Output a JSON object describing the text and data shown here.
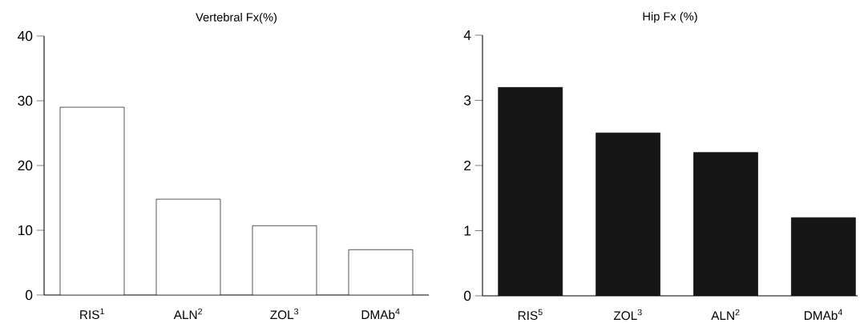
{
  "chart_data": [
    {
      "type": "bar",
      "title": "Vertebral Fx(%)",
      "categories": [
        "RIS$^{1}$",
        "ALN$^{2}$",
        "ZOL$^{3}$",
        "DMAb$^{4}$"
      ],
      "values": [
        29,
        14.8,
        10.7,
        7.0
      ],
      "color": "#ffffff",
      "ylim": [
        0,
        40
      ],
      "yticks": [
        0,
        10,
        20,
        30,
        40
      ],
      "grid": false
    },
    {
      "type": "bar",
      "title": "Hip Fx (%)",
      "categories": [
        "RIS$^{5}$",
        "ZOL$^{3}$",
        "ALN$^{2}$",
        "DMAb$^{4}$"
      ],
      "values": [
        3.2,
        2.5,
        2.2,
        1.2
      ],
      "color": "#161616",
      "ylim": [
        0,
        4
      ],
      "yticks": [
        0,
        1,
        2,
        3,
        4
      ],
      "grid": false
    }
  ]
}
